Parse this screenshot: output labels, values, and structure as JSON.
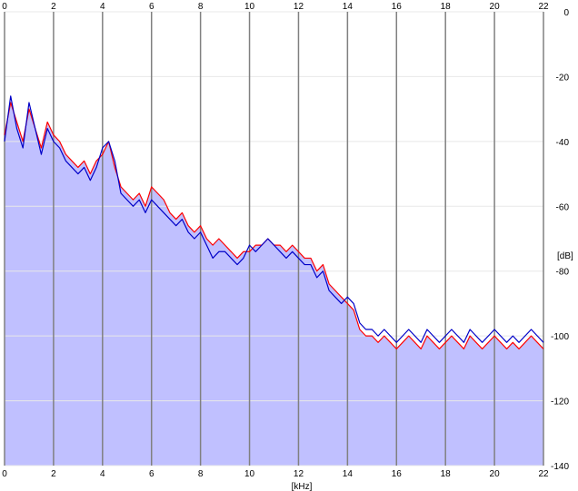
{
  "chart_data": {
    "type": "area",
    "xlabel": "[kHz]",
    "ylabel": "[dB]",
    "xlim": [
      0,
      22
    ],
    "ylim": [
      -140,
      0
    ],
    "x_ticks": [
      "0",
      "2",
      "4",
      "6",
      "8",
      "10",
      "12",
      "14",
      "16",
      "18",
      "20",
      "22"
    ],
    "y_ticks": [
      "0",
      "-20",
      "-40",
      "-60",
      "-80",
      "-100",
      "-120",
      "-140"
    ],
    "grid": true,
    "colors": {
      "background": "#ffffff",
      "fill": "#c0c0ff",
      "grid_vertical": "#808080",
      "grid_horizontal": "#e8e8e8",
      "series": [
        "#ff0000",
        "#0000c8"
      ]
    },
    "series": [
      {
        "color": "#ff0000",
        "x": [
          0,
          0.25,
          0.5,
          0.75,
          1.0,
          1.25,
          1.5,
          1.75,
          2.0,
          2.25,
          2.5,
          2.75,
          3.0,
          3.25,
          3.5,
          3.75,
          4.0,
          4.25,
          4.5,
          4.75,
          5.0,
          5.25,
          5.5,
          5.75,
          6.0,
          6.25,
          6.5,
          6.75,
          7.0,
          7.25,
          7.5,
          7.75,
          8.0,
          8.25,
          8.5,
          8.75,
          9.0,
          9.25,
          9.5,
          9.75,
          10.0,
          10.25,
          10.5,
          10.75,
          11.0,
          11.25,
          11.5,
          11.75,
          12.0,
          12.25,
          12.5,
          12.75,
          13.0,
          13.25,
          13.5,
          13.75,
          14.0,
          14.25,
          14.5,
          14.75,
          15.0,
          15.25,
          15.5,
          15.75,
          16.0,
          16.25,
          16.5,
          16.75,
          17.0,
          17.25,
          17.5,
          17.75,
          18.0,
          18.25,
          18.5,
          18.75,
          19.0,
          19.25,
          19.5,
          19.75,
          20.0,
          20.25,
          20.5,
          20.75,
          21.0,
          21.25,
          21.5,
          21.75,
          22.0
        ],
        "values": [
          -38,
          -28,
          -34,
          -40,
          -30,
          -36,
          -42,
          -34,
          -38,
          -40,
          -44,
          -46,
          -48,
          -46,
          -50,
          -46,
          -44,
          -40,
          -48,
          -54,
          -56,
          -58,
          -56,
          -60,
          -54,
          -56,
          -58,
          -62,
          -64,
          -62,
          -66,
          -68,
          -66,
          -70,
          -72,
          -70,
          -72,
          -74,
          -76,
          -74,
          -74,
          -72,
          -72,
          -70,
          -72,
          -72,
          -74,
          -72,
          -74,
          -76,
          -76,
          -80,
          -78,
          -84,
          -86,
          -88,
          -90,
          -92,
          -98,
          -100,
          -100,
          -102,
          -100,
          -102,
          -104,
          -102,
          -100,
          -102,
          -104,
          -100,
          -102,
          -104,
          -102,
          -100,
          -102,
          -104,
          -100,
          -102,
          -104,
          -102,
          -100,
          -102,
          -104,
          -102,
          -104,
          -102,
          -100,
          -102,
          -104
        ]
      },
      {
        "color": "#0000c8",
        "x": [
          0,
          0.25,
          0.5,
          0.75,
          1.0,
          1.25,
          1.5,
          1.75,
          2.0,
          2.25,
          2.5,
          2.75,
          3.0,
          3.25,
          3.5,
          3.75,
          4.0,
          4.25,
          4.5,
          4.75,
          5.0,
          5.25,
          5.5,
          5.75,
          6.0,
          6.25,
          6.5,
          6.75,
          7.0,
          7.25,
          7.5,
          7.75,
          8.0,
          8.25,
          8.5,
          8.75,
          9.0,
          9.25,
          9.5,
          9.75,
          10.0,
          10.25,
          10.5,
          10.75,
          11.0,
          11.25,
          11.5,
          11.75,
          12.0,
          12.25,
          12.5,
          12.75,
          13.0,
          13.25,
          13.5,
          13.75,
          14.0,
          14.25,
          14.5,
          14.75,
          15.0,
          15.25,
          15.5,
          15.75,
          16.0,
          16.25,
          16.5,
          16.75,
          17.0,
          17.25,
          17.5,
          17.75,
          18.0,
          18.25,
          18.5,
          18.75,
          19.0,
          19.25,
          19.5,
          19.75,
          20.0,
          20.25,
          20.5,
          20.75,
          21.0,
          21.25,
          21.5,
          21.75,
          22.0
        ],
        "values": [
          -40,
          -26,
          -36,
          -42,
          -28,
          -36,
          -44,
          -36,
          -40,
          -42,
          -46,
          -48,
          -50,
          -48,
          -52,
          -48,
          -42,
          -40,
          -46,
          -56,
          -58,
          -60,
          -58,
          -62,
          -58,
          -60,
          -62,
          -64,
          -66,
          -64,
          -68,
          -70,
          -68,
          -72,
          -76,
          -74,
          -74,
          -76,
          -78,
          -76,
          -72,
          -74,
          -72,
          -70,
          -72,
          -74,
          -76,
          -74,
          -76,
          -78,
          -78,
          -82,
          -80,
          -86,
          -88,
          -90,
          -88,
          -90,
          -96,
          -98,
          -98,
          -100,
          -98,
          -100,
          -102,
          -100,
          -98,
          -100,
          -102,
          -98,
          -100,
          -102,
          -100,
          -98,
          -100,
          -102,
          -98,
          -100,
          -102,
          -100,
          -98,
          -100,
          -102,
          -100,
          -102,
          -100,
          -98,
          -100,
          -102
        ]
      }
    ]
  }
}
